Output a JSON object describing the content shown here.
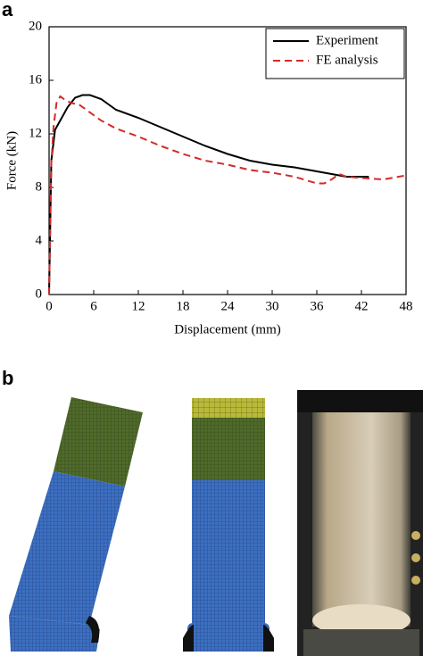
{
  "panel_labels": [
    "a",
    "b"
  ],
  "chart_data": {
    "type": "line",
    "x_label": "Displacement (mm)",
    "y_label": "Force (kN)",
    "xlim": [
      0,
      48
    ],
    "xticks": [
      0,
      6,
      12,
      18,
      24,
      30,
      36,
      42,
      48
    ],
    "ylim": [
      0,
      20
    ],
    "yticks": [
      0,
      4,
      8,
      12,
      16,
      20
    ],
    "legend": "upper right",
    "series": [
      {
        "name": "Experiment",
        "color": "#000000",
        "dash": "solid",
        "x": [
          0,
          0.3,
          0.8,
          1.5,
          2.5,
          3.5,
          4.5,
          5.5,
          7,
          9,
          12,
          15,
          18,
          21,
          24,
          27,
          30,
          33,
          36,
          39,
          40,
          43
        ],
        "values": [
          0,
          10,
          12.3,
          13,
          14,
          14.7,
          14.9,
          14.9,
          14.6,
          13.8,
          13.2,
          12.5,
          11.8,
          11.1,
          10.5,
          10,
          9.7,
          9.5,
          9.2,
          8.9,
          8.8,
          8.8
        ]
      },
      {
        "name": "FE analysis",
        "color": "#d42a2a",
        "dash": "dashed",
        "x": [
          0,
          0.3,
          0.6,
          1,
          1.5,
          2,
          3,
          4,
          5,
          7,
          9,
          12,
          15,
          18,
          21,
          24,
          27,
          30,
          33,
          36,
          37,
          38,
          39,
          40,
          42,
          45,
          48
        ],
        "values": [
          0,
          9.8,
          12.5,
          14.3,
          14.8,
          14.6,
          14.3,
          14.2,
          13.8,
          13,
          12.4,
          11.8,
          11.1,
          10.5,
          10,
          9.7,
          9.3,
          9.1,
          8.8,
          8.3,
          8.3,
          8.6,
          9,
          8.8,
          8.7,
          8.6,
          8.9
        ]
      }
    ]
  }
}
